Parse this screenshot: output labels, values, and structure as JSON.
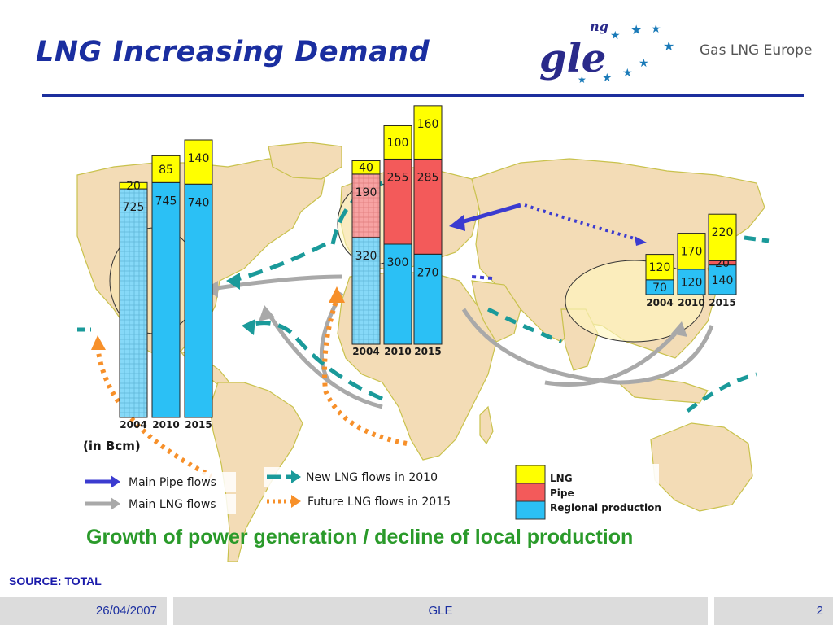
{
  "slide": {
    "title": "LNG Increasing Demand",
    "logo_text": "Gas LNG Europe",
    "logo_mark": "gle",
    "logo_sup": "ng",
    "source": "SOURCE: TOTAL",
    "footer_date": "26/04/2007",
    "footer_center": "GLE",
    "footer_page": "2",
    "unit_note": "(in Bcm)",
    "headline": "Growth of power generation / decline of local production"
  },
  "colors": {
    "lng": "#ffff00",
    "pipe": "#f35a5a",
    "regional": "#2bc0f5",
    "regional_hatched": "#86d9f8",
    "pipe_hatched": "#f7a3a3",
    "pipe_flow": "#3b3bd0",
    "lng_flow": "#a9a9a9",
    "new_lng_flow": "#1a9a9a",
    "future_lng_flow": "#f7902a",
    "map_land": "#f3dcb6",
    "map_border": "#c8c850",
    "title": "#1a2ea0"
  },
  "legend": {
    "flows": [
      {
        "key": "pipe",
        "label": "Main Pipe flows"
      },
      {
        "key": "lng",
        "label": "Main LNG flows"
      },
      {
        "key": "new_lng",
        "label": "New LNG flows in 2010"
      },
      {
        "key": "future_lng",
        "label": "Future LNG flows in 2015"
      }
    ],
    "segments": [
      {
        "key": "lng",
        "label": "LNG"
      },
      {
        "key": "pipe",
        "label": "Pipe"
      },
      {
        "key": "regional",
        "label": "Regional production"
      }
    ]
  },
  "chart_data": [
    {
      "type": "bar",
      "region": "North America",
      "categories": [
        "2004",
        "2010",
        "2015"
      ],
      "series": [
        {
          "name": "Regional production",
          "values": [
            725,
            745,
            740
          ]
        },
        {
          "name": "Pipe",
          "values": [
            0,
            0,
            0
          ]
        },
        {
          "name": "LNG",
          "values": [
            20,
            85,
            140
          ]
        }
      ],
      "stacked": true
    },
    {
      "type": "bar",
      "region": "Europe",
      "categories": [
        "2004",
        "2010",
        "2015"
      ],
      "series": [
        {
          "name": "Regional production",
          "values": [
            320,
            300,
            270
          ]
        },
        {
          "name": "Pipe",
          "values": [
            190,
            255,
            285
          ]
        },
        {
          "name": "LNG",
          "values": [
            40,
            100,
            160
          ]
        }
      ],
      "stacked": true
    },
    {
      "type": "bar",
      "region": "Asia",
      "categories": [
        "2004",
        "2010",
        "2015"
      ],
      "series": [
        {
          "name": "Regional production",
          "values": [
            70,
            120,
            140
          ]
        },
        {
          "name": "Pipe",
          "values": [
            0,
            0,
            20
          ]
        },
        {
          "name": "LNG",
          "values": [
            120,
            170,
            220
          ]
        }
      ],
      "stacked": true
    }
  ]
}
